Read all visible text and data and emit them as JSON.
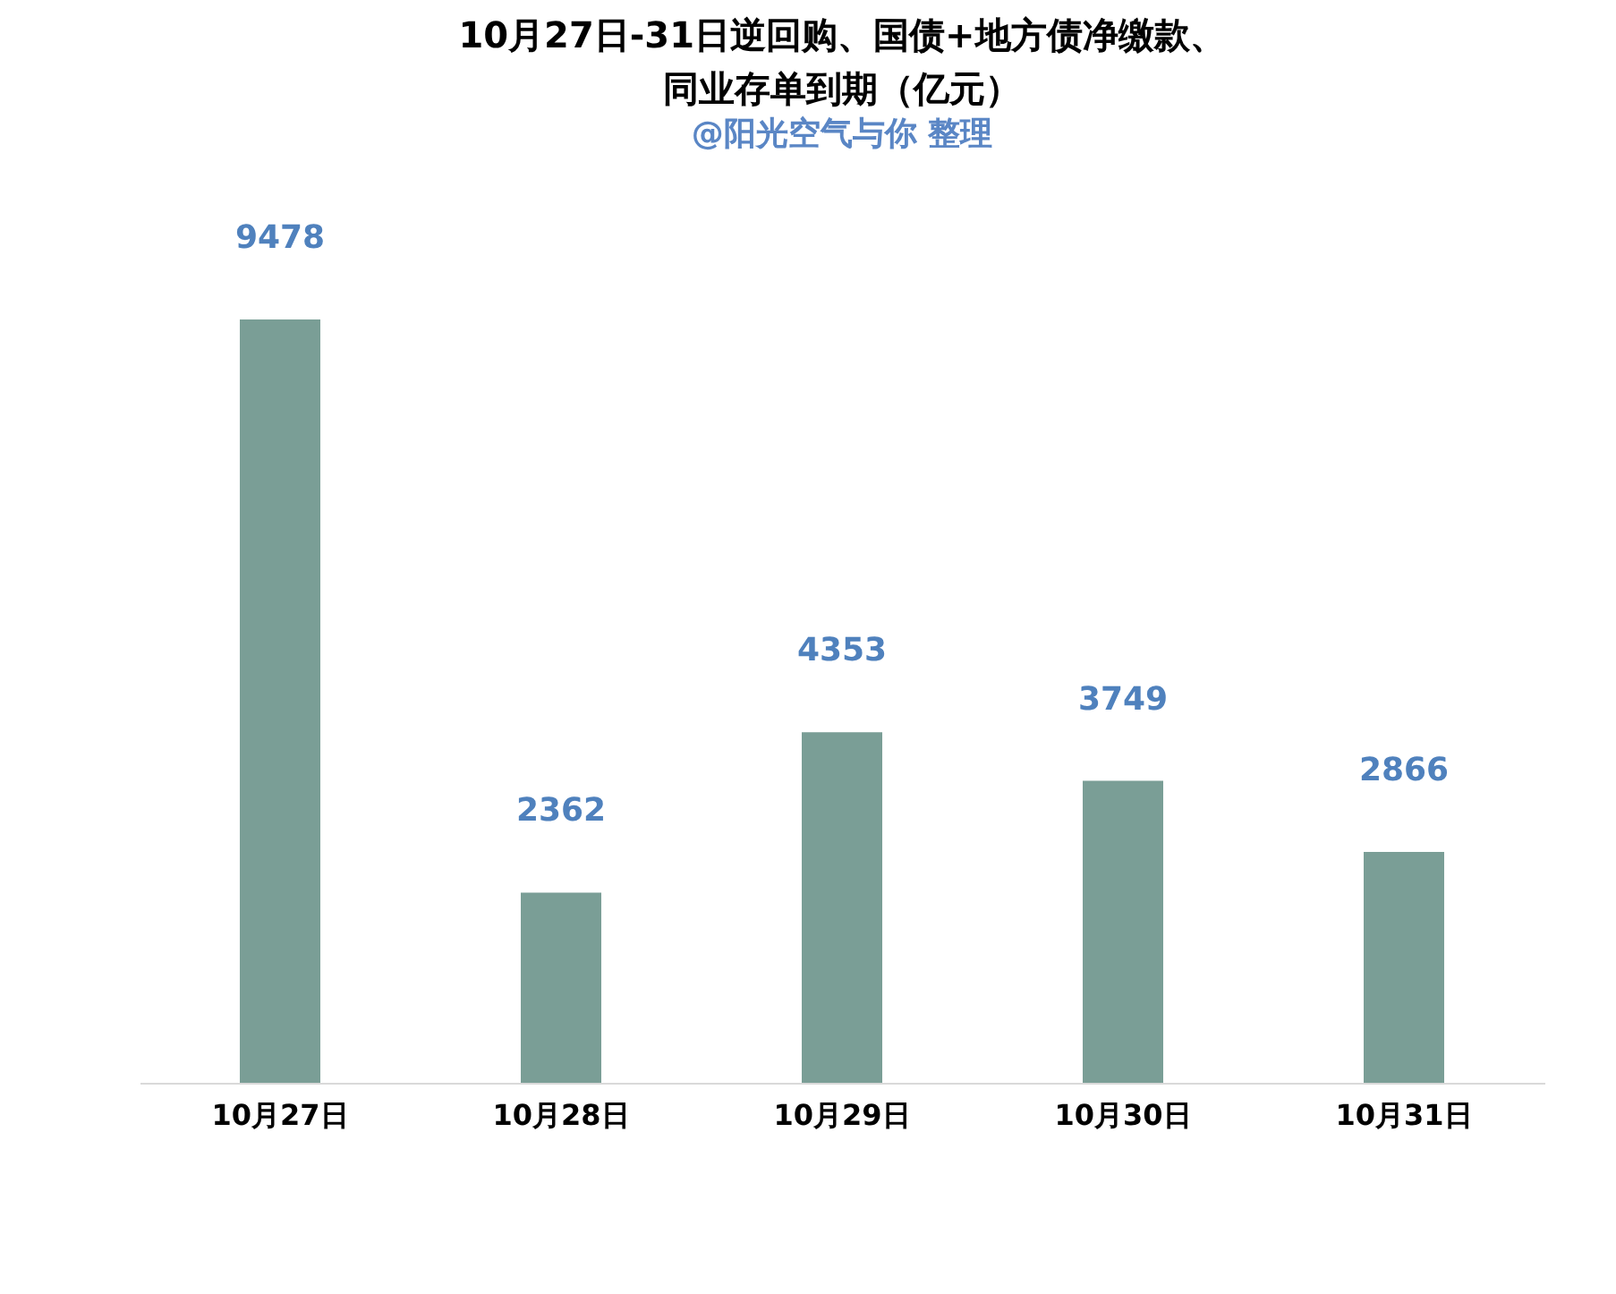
{
  "chart_data": {
    "type": "bar",
    "title": "10月27日-31日逆回购、国债+地方债净缴款、同业存单到期（亿元）",
    "subtitle": "@阳光空气与你  整理",
    "categories": [
      "10月27日",
      "10月28日",
      "10月29日",
      "10月30日",
      "10月31日"
    ],
    "values": [
      9478,
      2362,
      4353,
      3749,
      2866
    ],
    "color": "#7a9e96",
    "data_labels": true,
    "grid": false
  }
}
